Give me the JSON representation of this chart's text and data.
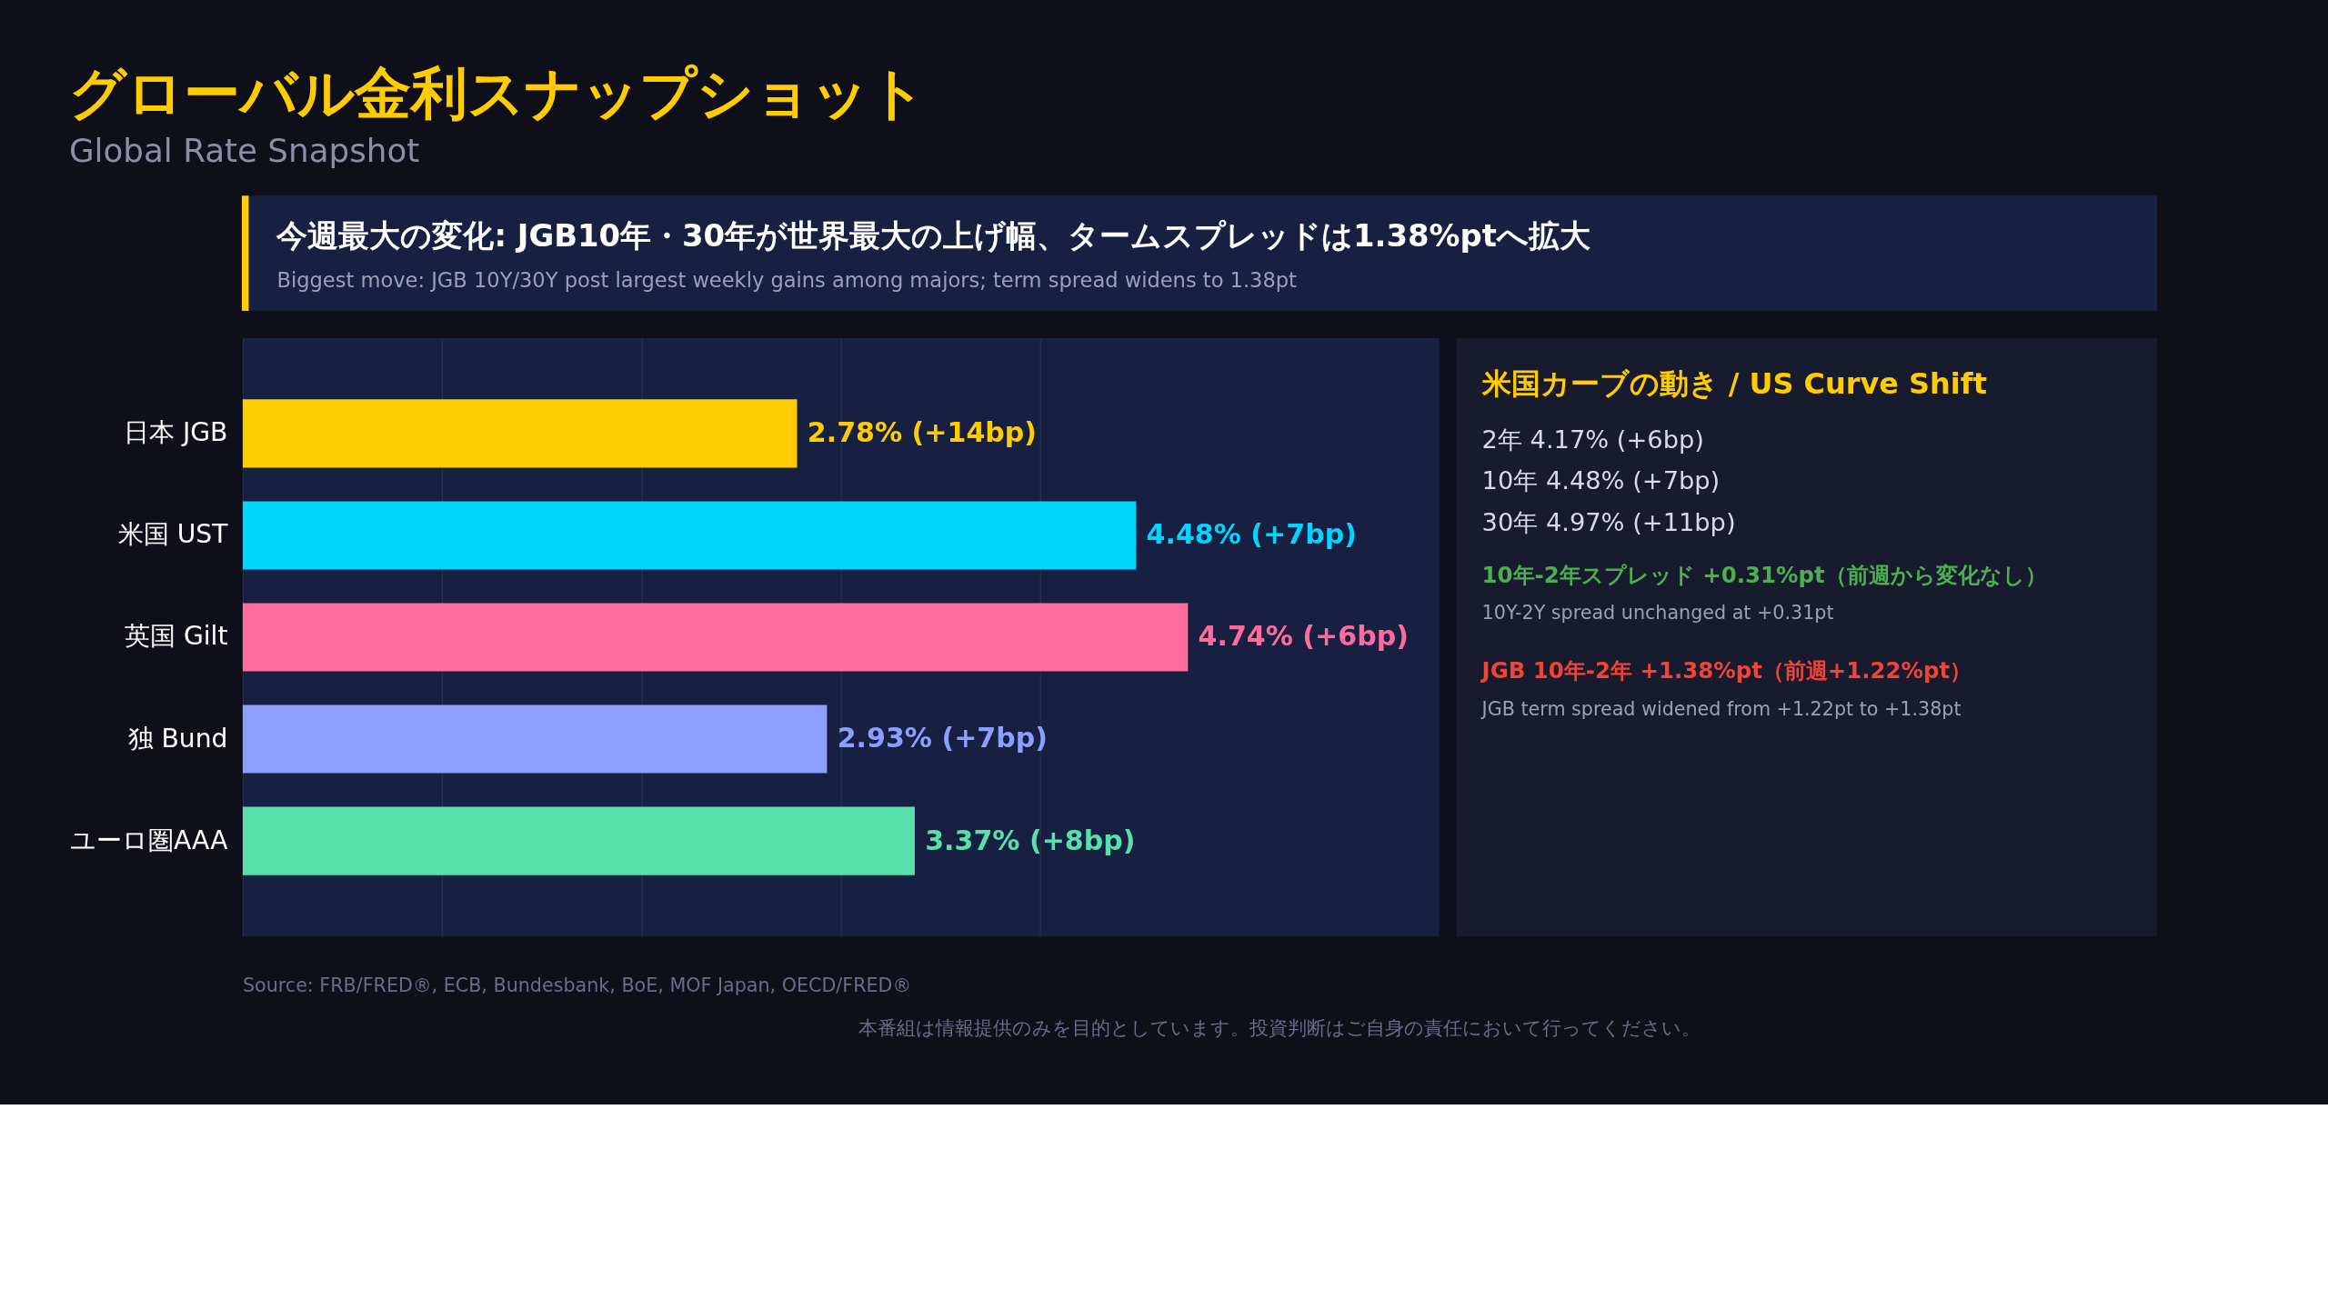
{
  "chart_data": [
    {
      "type": "bar",
      "orientation": "horizontal",
      "title": "グローバル金利スナップショット",
      "subtitle": "Global Rate Snapshot",
      "categories": [
        "日本 JGB",
        "米国 UST",
        "英国 Gilt",
        "独 Bund",
        "ユーロ圏AAA"
      ],
      "values": [
        2.78,
        4.48,
        4.74,
        2.93,
        3.37
      ],
      "colors": [
        "#ffcc00",
        "#00d4ff",
        "#ff6b9d",
        "#8c9eff",
        "#57dfac"
      ],
      "value_labels": [
        "2.78% (+14bp)",
        "4.48% (+7bp)",
        "4.74% (+6bp)",
        "2.93% (+7bp)",
        "3.37% (+8bp)"
      ],
      "xlim": [
        0,
        6
      ],
      "xticks": [
        {
          "value": 0,
          "label": null
        },
        {
          "value": 1,
          "label": null
        },
        {
          "value": 2,
          "label": null
        },
        {
          "value": 3,
          "label": null
        },
        {
          "value": 4,
          "label": null
        }
      ],
      "grid": "x",
      "tick_labels": "y",
      "annotations": [
        "今週最大の変化: JGB10年・30年が世界最大の上げ幅、タームスプレッドは1.38%ptへ拡大",
        "Biggest move: JGB 10Y/30Y post largest weekly gains among majors; term spread widens to 1.38pt",
        "Source: FRB/FRED®, ECB, Bundesbank, BoE, MOF Japan, OECD/FRED®",
        "本番組は情報提供のみを目的としています。投資判断はご自身の責任において行ってください。"
      ]
    },
    {
      "type": "other",
      "title": "米国カーブの動き / US Curve Shift",
      "annotations": [
        "2年 4.17% (+6bp)",
        "10年 4.48% (+7bp)",
        "30年 4.97% (+11bp)",
        "10年-2年スプレッド +0.31%pt（前週から変化なし）",
        "10Y-2Y spread unchanged at +0.31pt",
        "JGB 10年-2年 +1.38%pt（前週+1.22%pt）",
        "JGB term spread widened from +1.22pt to +1.38pt"
      ]
    }
  ]
}
